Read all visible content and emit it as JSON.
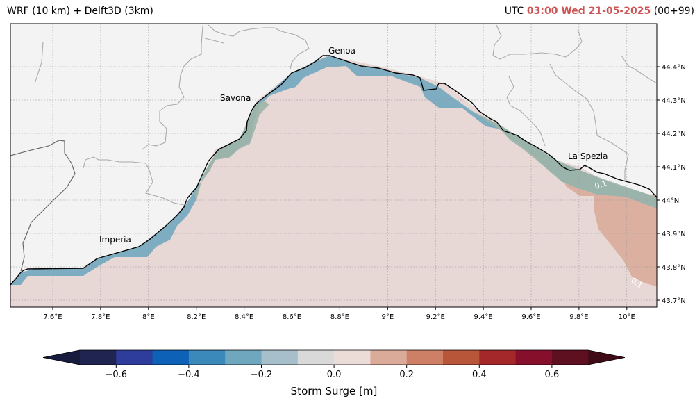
{
  "header": {
    "model_label": "WRF (10 km) + Delft3D (3km)",
    "utc_label": "UTC",
    "time_value": "03:00 Wed 21-05-2025",
    "run_offset": "(00+99)"
  },
  "map": {
    "lon_ticks": [
      "7.6°E",
      "7.8°E",
      "8°E",
      "8.2°E",
      "8.4°E",
      "8.6°E",
      "8.8°E",
      "9°E",
      "9.2°E",
      "9.4°E",
      "9.6°E",
      "9.8°E",
      "10°E"
    ],
    "lat_ticks": [
      "44.4°N",
      "44.3°N",
      "44.2°N",
      "44.1°N",
      "44°N",
      "43.9°N",
      "43.8°N",
      "43.7°N"
    ],
    "cities": [
      {
        "name": "Genoa"
      },
      {
        "name": "Savona"
      },
      {
        "name": "La Spezia"
      },
      {
        "name": "Imperia"
      }
    ],
    "contour_labels": [
      "0.1",
      "0.1"
    ],
    "colors": {
      "land": "#f3f3f3",
      "sea_base": "#e7d7d5",
      "surge_positive": "#dbb0a1",
      "coast_band_blue": "#7eadc2",
      "coast_band_green": "#9fb5a8"
    }
  },
  "colorbar": {
    "label": "Storm Surge [m]",
    "tick_labels": [
      "−0.6",
      "−0.4",
      "−0.2",
      "0.0",
      "0.2",
      "0.4",
      "0.6"
    ],
    "colors": [
      "#1f2451",
      "#2e3d9b",
      "#0d61b7",
      "#3b88bb",
      "#6ea7be",
      "#a6bfca",
      "#d9d9d9",
      "#ecdcd8",
      "#dbab99",
      "#cd8065",
      "#b85639",
      "#a4282a",
      "#86102c",
      "#5e0f20"
    ],
    "under_color": "#171c3f",
    "over_color": "#3f0b17"
  }
}
